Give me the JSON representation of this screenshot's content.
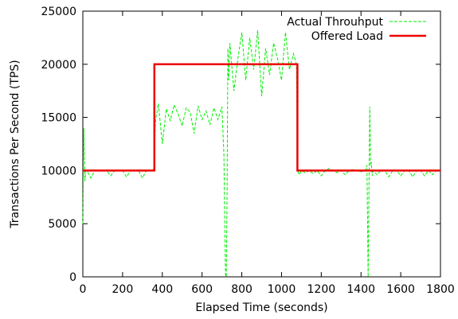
{
  "chart_data": {
    "type": "line",
    "title": "",
    "xlabel": "Elapsed Time (seconds)",
    "ylabel": "Transactions Per Second (TPS)",
    "xlim": [
      0,
      1800
    ],
    "ylim": [
      0,
      25000
    ],
    "xticks": [
      0,
      200,
      400,
      600,
      800,
      1000,
      1200,
      1400,
      1600,
      1800
    ],
    "yticks": [
      0,
      5000,
      10000,
      15000,
      20000,
      25000
    ],
    "grid": false,
    "legend_position": "top-right",
    "series": [
      {
        "name": "Actual Throuhput",
        "color": "#00ee00",
        "style": "dashed",
        "x": [
          0,
          5,
          10,
          15,
          20,
          40,
          60,
          80,
          100,
          120,
          140,
          160,
          180,
          200,
          220,
          240,
          260,
          280,
          300,
          320,
          340,
          355,
          360,
          365,
          370,
          380,
          400,
          420,
          440,
          460,
          480,
          500,
          520,
          540,
          560,
          580,
          600,
          620,
          640,
          660,
          680,
          700,
          710,
          718,
          722,
          726,
          730,
          734,
          740,
          760,
          780,
          800,
          820,
          840,
          860,
          880,
          900,
          920,
          940,
          960,
          980,
          1000,
          1020,
          1040,
          1060,
          1075,
          1080,
          1090,
          1100,
          1120,
          1140,
          1160,
          1180,
          1200,
          1220,
          1240,
          1260,
          1280,
          1300,
          1320,
          1340,
          1360,
          1380,
          1400,
          1420,
          1430,
          1436,
          1440,
          1444,
          1448,
          1452,
          1456,
          1460,
          1480,
          1500,
          1520,
          1540,
          1560,
          1580,
          1600,
          1620,
          1640,
          1660,
          1680,
          1700,
          1720,
          1740,
          1760,
          1780,
          1800
        ],
        "y": [
          5000,
          14000,
          9000,
          10000,
          10000,
          9300,
          10000,
          10000,
          10000,
          10000,
          9500,
          10000,
          10000,
          10000,
          9400,
          10000,
          10000,
          10000,
          9300,
          10000,
          10000,
          10000,
          11000,
          14500,
          15200,
          16300,
          12500,
          15800,
          14700,
          16200,
          15300,
          14200,
          15900,
          15500,
          13500,
          16100,
          14800,
          15600,
          14300,
          15900,
          14800,
          16000,
          11500,
          200,
          0,
          8000,
          21500,
          18500,
          22000,
          17500,
          20500,
          23000,
          18500,
          22500,
          19500,
          23200,
          17000,
          21500,
          19000,
          22000,
          20500,
          18500,
          23000,
          19500,
          21000,
          20000,
          10000,
          9600,
          10000,
          9800,
          10000,
          9700,
          10000,
          9500,
          10000,
          10200,
          10000,
          9800,
          10000,
          9600,
          10000,
          10100,
          10000,
          9900,
          10000,
          10500,
          0,
          8000,
          16000,
          10500,
          10800,
          9500,
          10000,
          9600,
          10000,
          10000,
          9400,
          10000,
          10000,
          9500,
          10000,
          10000,
          9400,
          10000,
          10000,
          9500,
          10000,
          9600,
          10000,
          10000
        ]
      },
      {
        "name": "Offered Load",
        "color": "#ee0000",
        "style": "solid",
        "x": [
          0,
          360,
          360,
          1080,
          1080,
          1800
        ],
        "y": [
          10000,
          10000,
          20000,
          20000,
          10000,
          10000
        ]
      }
    ]
  }
}
